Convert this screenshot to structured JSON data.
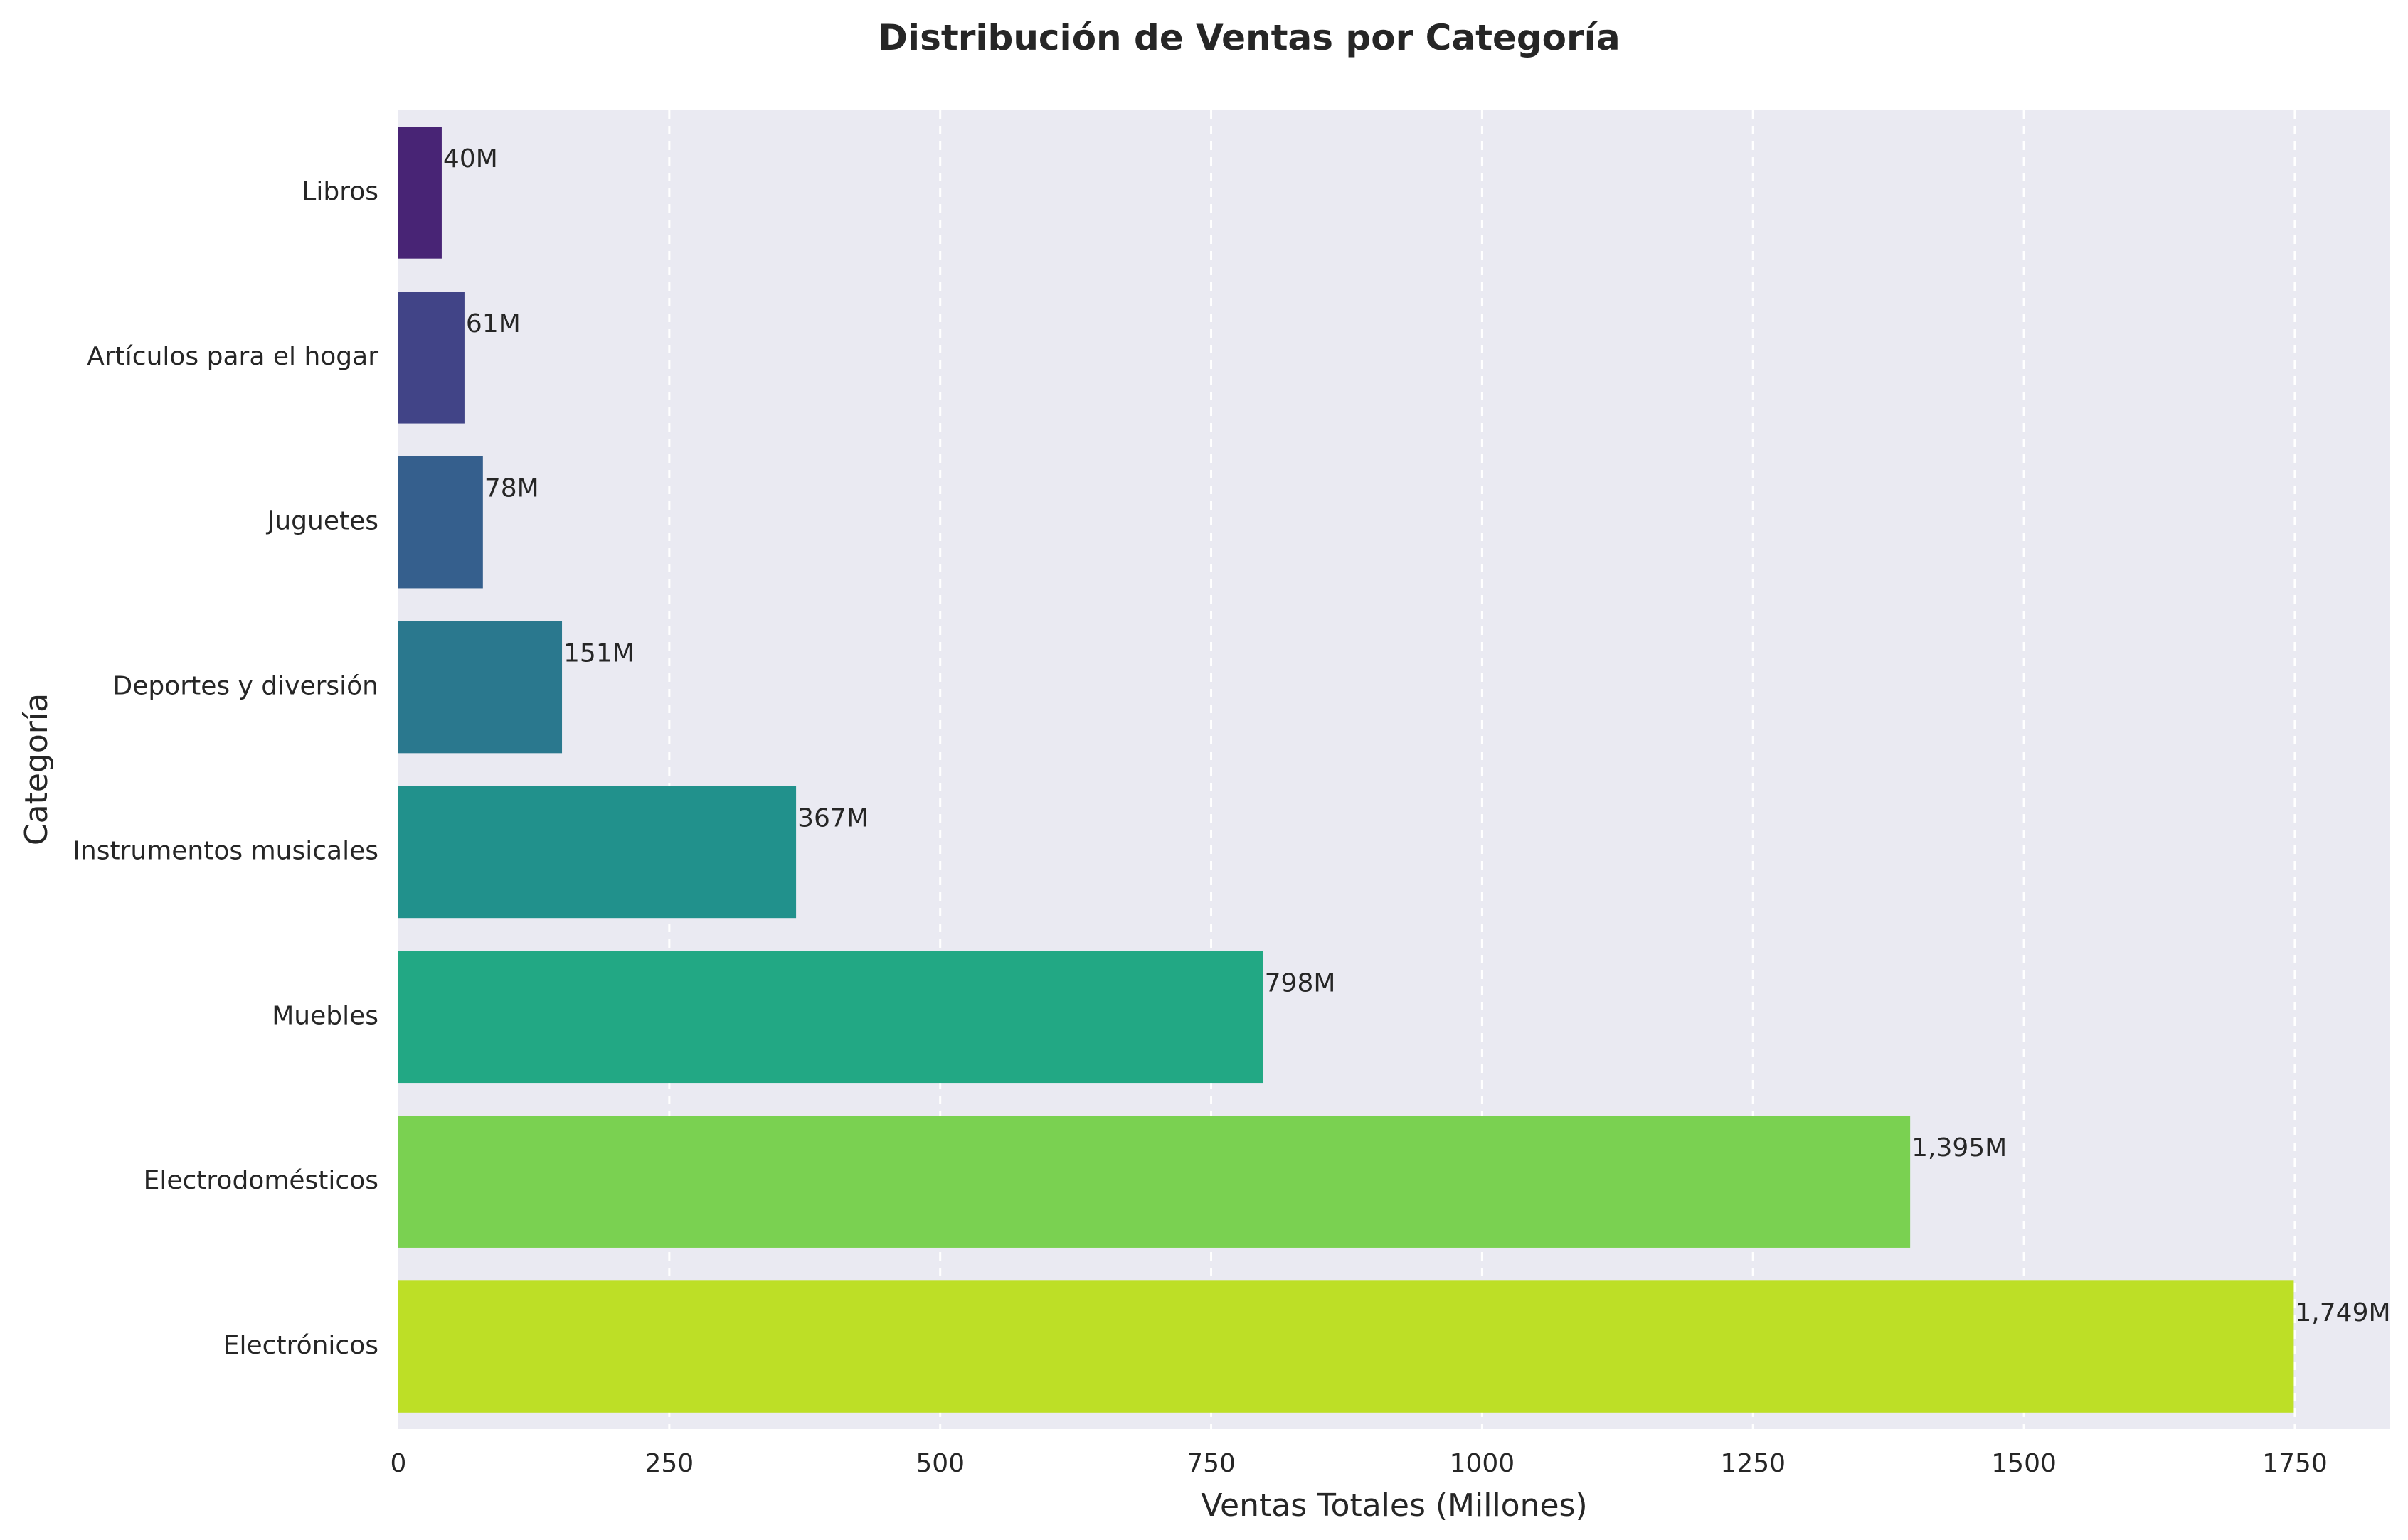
{
  "chart_data": {
    "type": "bar",
    "orientation": "horizontal",
    "title": "Distribución de Ventas por Categoría",
    "xlabel": "Ventas Totales (Millones)",
    "ylabel": "Categoría",
    "xlim": [
      0,
      1838
    ],
    "xticks": [
      0,
      250,
      500,
      750,
      1000,
      1250,
      1500,
      1750
    ],
    "grid": "x, dashed",
    "background": "#eaeaf2",
    "categories": [
      "Libros",
      "Artículos para el hogar",
      "Juguetes",
      "Deportes y diversión",
      "Instrumentos musicales",
      "Muebles",
      "Electrodomésticos",
      "Electrónicos"
    ],
    "values": [
      40,
      61,
      78,
      151,
      367,
      798,
      1395,
      1749
    ],
    "value_labels": [
      "40M",
      "61M",
      "78M",
      "151M",
      "367M",
      "798M",
      "1,395M",
      "1,749M"
    ],
    "colors": [
      "#482475",
      "#414487",
      "#355f8d",
      "#2a788e",
      "#21918c",
      "#22a884",
      "#7ad151",
      "#bddf26"
    ]
  }
}
